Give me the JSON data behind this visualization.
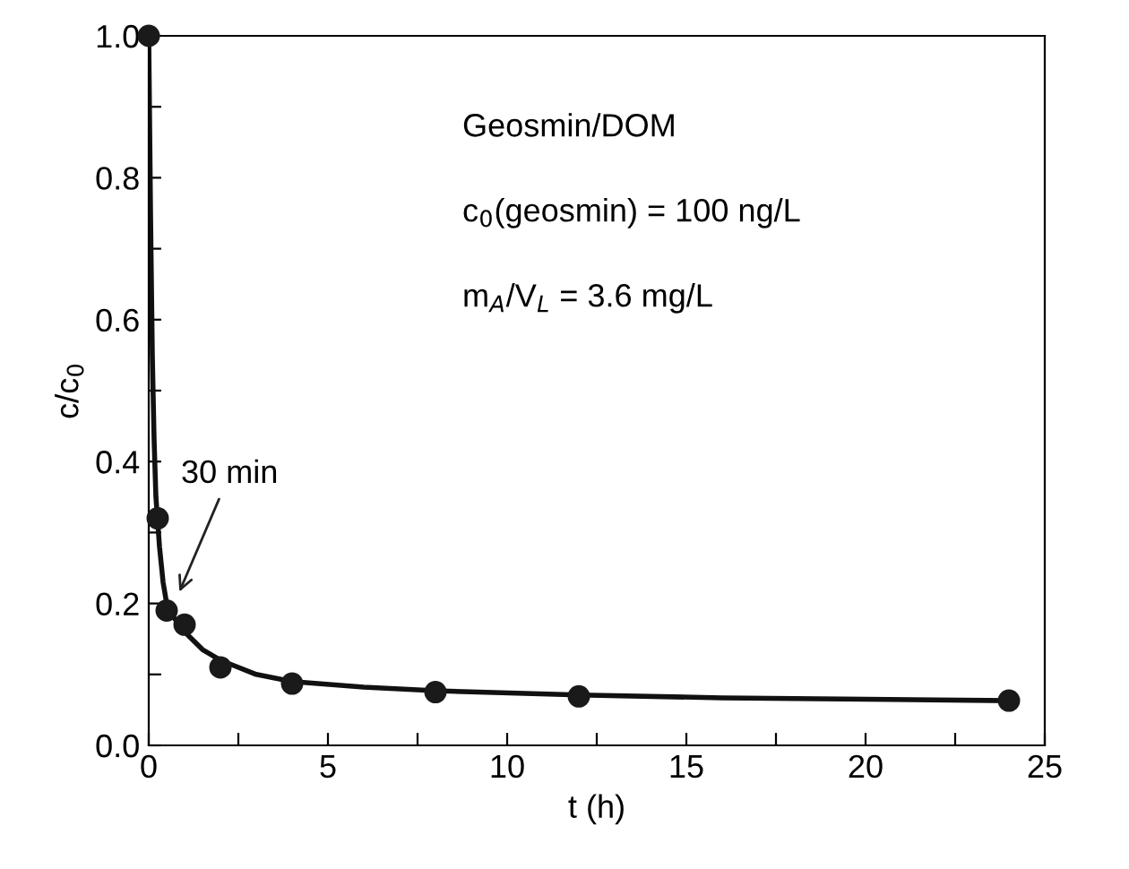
{
  "chart_data": {
    "type": "scatter",
    "xlabel": "t (h)",
    "ylabel": "c/c$_{0}$",
    "xlim": [
      0,
      25
    ],
    "ylim": [
      0,
      1.0
    ],
    "xticks": [
      0,
      {
        "value": 2.5,
        "label": null
      },
      5,
      {
        "value": 7.5,
        "label": null
      },
      10,
      {
        "value": 12.5,
        "label": null
      },
      15,
      {
        "value": 17.5,
        "label": null
      },
      20,
      {
        "value": 22.5,
        "label": null
      },
      25
    ],
    "yticks": [
      {
        "value": 0,
        "label": "0.0"
      },
      {
        "value": 0.1,
        "label": null
      },
      0.2,
      {
        "value": 0.3,
        "label": null
      },
      0.4,
      {
        "value": 0.5,
        "label": null
      },
      0.6,
      {
        "value": 0.7,
        "label": null
      },
      0.8,
      {
        "value": 0.9,
        "label": null
      },
      {
        "value": 1.0,
        "label": "1.0"
      }
    ],
    "grid": false,
    "legend": false,
    "series": [
      {
        "color": "#1a1a1a",
        "marker": "circle",
        "x": [
          0,
          0.25,
          0.5,
          1,
          2,
          4,
          8,
          12,
          24
        ],
        "values": [
          1.0,
          0.32,
          0.19,
          0.17,
          0.11,
          0.087,
          0.075,
          0.069,
          0.063
        ]
      },
      {
        "type": "line",
        "color": "#111111",
        "line_style": "solid",
        "marker": "none",
        "x": [
          0,
          0.05,
          0.1,
          0.15,
          0.2,
          0.3,
          0.4,
          0.5,
          0.7,
          1,
          1.5,
          2,
          3,
          4,
          6,
          8,
          12,
          16,
          20,
          24
        ],
        "values": [
          1.0,
          0.75,
          0.55,
          0.43,
          0.35,
          0.28,
          0.23,
          0.2,
          0.18,
          0.16,
          0.135,
          0.12,
          0.1,
          0.09,
          0.082,
          0.077,
          0.071,
          0.067,
          0.065,
          0.063
        ]
      }
    ],
    "annotations": [
      "Geosmin/DOM",
      "c$_{0}$(geosmin) = 100 ng/L",
      "m$_{A}$/V$_{L}$ = 3.6 mg/L",
      {
        "text": "30 min",
        "x": 0.8,
        "y": 0.21
      }
    ]
  }
}
